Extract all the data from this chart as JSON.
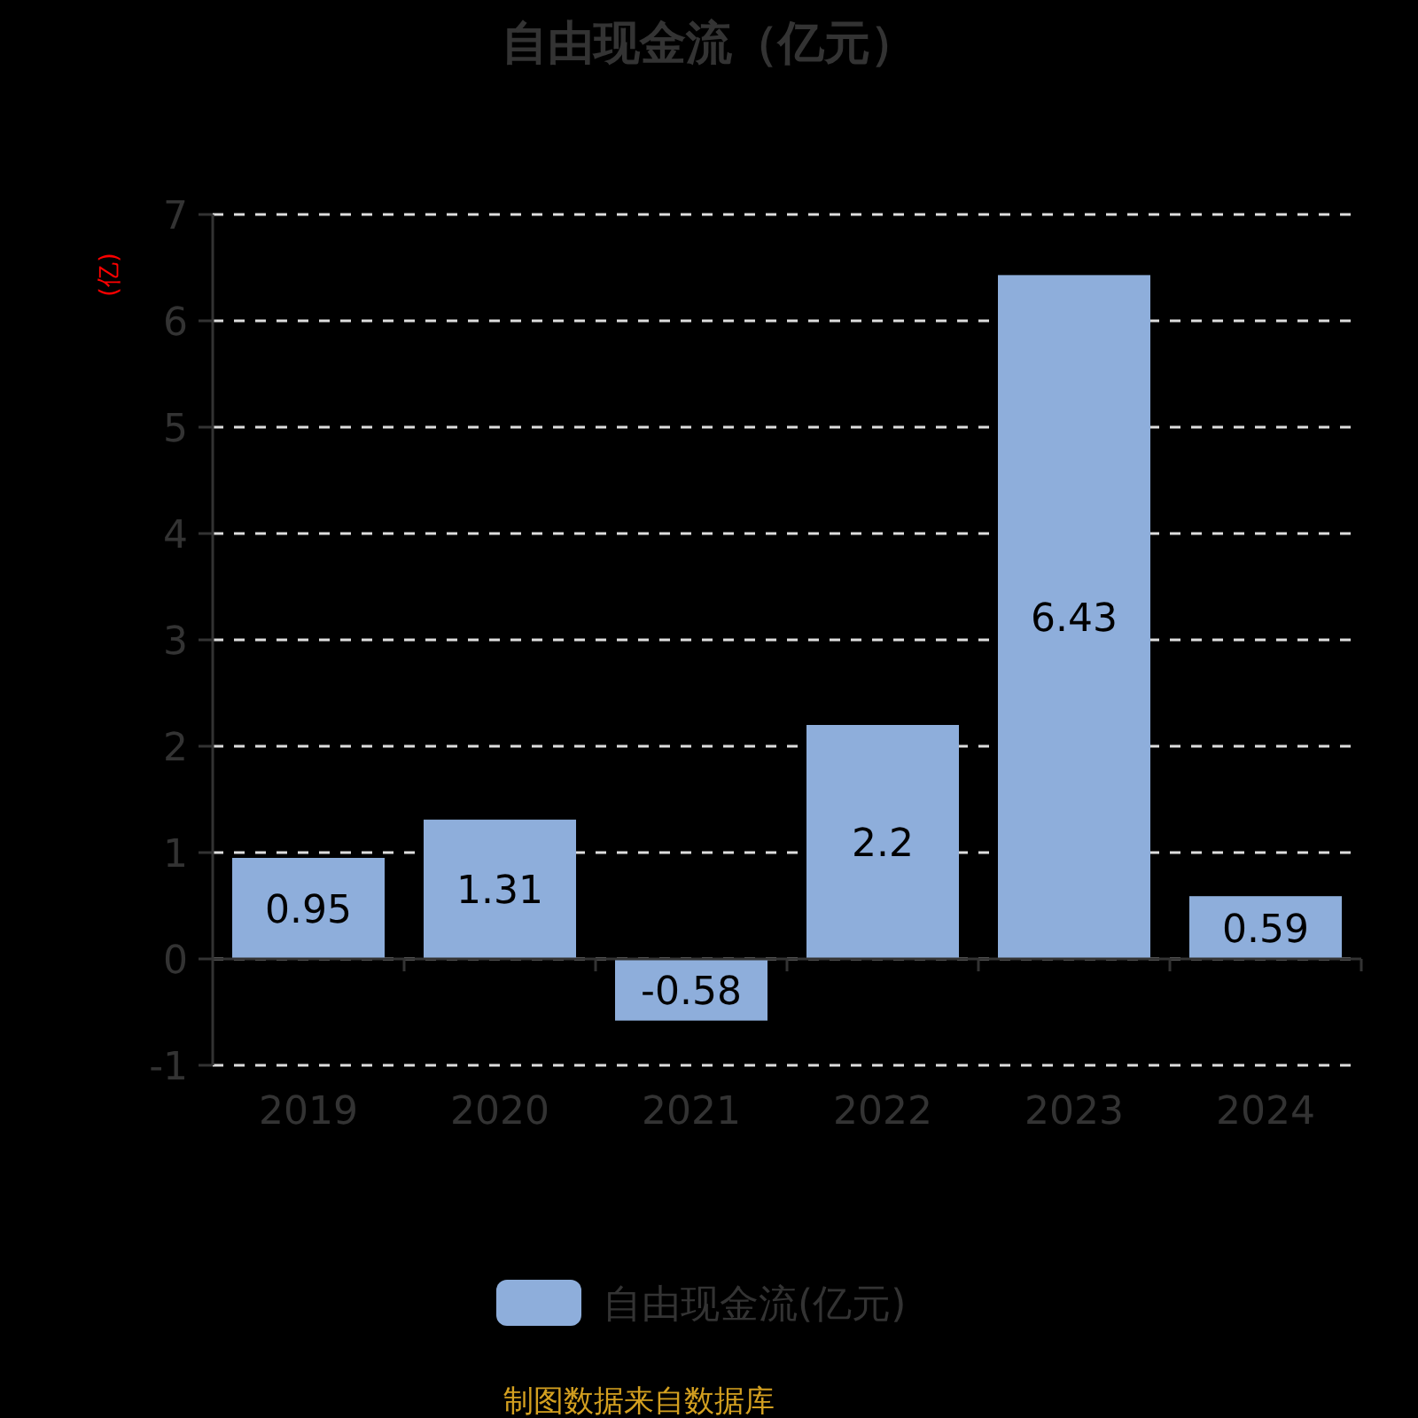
{
  "chart_data": {
    "type": "bar",
    "title": "自由现金流（亿元）",
    "ylabel": "(亿)",
    "categories": [
      "2019",
      "2020",
      "2021",
      "2022",
      "2023",
      "2024"
    ],
    "series": [
      {
        "name": "自由现金流(亿元)",
        "color": "#8eaedb",
        "values": [
          0.95,
          1.31,
          -0.58,
          2.2,
          6.43,
          0.59
        ]
      }
    ],
    "ylim": [
      -1,
      7
    ],
    "yticks": [
      -1,
      0,
      1,
      2,
      3,
      4,
      5,
      6,
      7
    ],
    "grid": "y",
    "legend": "bottom",
    "data_labels": true,
    "annotations": [
      "制图数据来自数据库"
    ]
  }
}
